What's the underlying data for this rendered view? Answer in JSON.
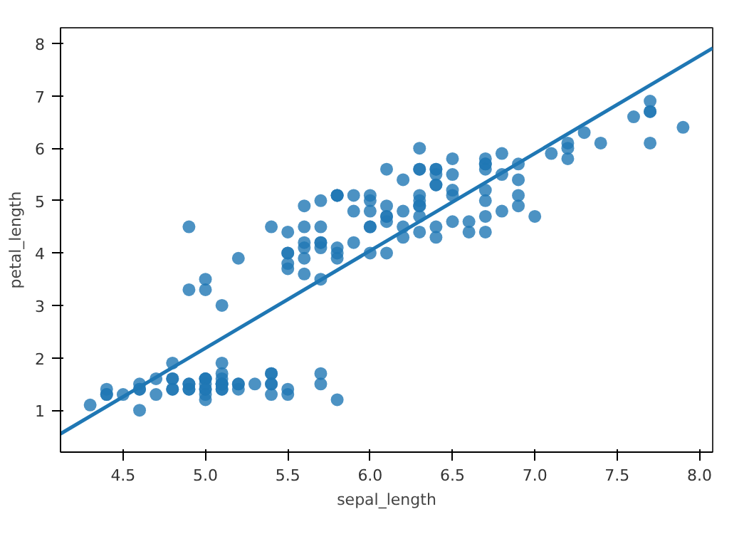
{
  "chart_data": {
    "type": "scatter",
    "xlabel": "sepal_length",
    "ylabel": "petal_length",
    "xlim": [
      4.12,
      8.08
    ],
    "ylim": [
      0.2,
      8.3
    ],
    "xticks": [
      {
        "value": 4.5,
        "label": "4.5"
      },
      {
        "value": 5.0,
        "label": "5.0"
      },
      {
        "value": 5.5,
        "label": "5.5"
      },
      {
        "value": 6.0,
        "label": "6.0"
      },
      {
        "value": 6.5,
        "label": "6.5"
      },
      {
        "value": 7.0,
        "label": "7.0"
      },
      {
        "value": 7.5,
        "label": "7.5"
      },
      {
        "value": 8.0,
        "label": "8.0"
      }
    ],
    "yticks": [
      1,
      2,
      3,
      4,
      5,
      6,
      7,
      8
    ],
    "grid": false,
    "marker": "circle",
    "series": [
      {
        "color": "#1f77b4",
        "x": [
          5.1,
          4.9,
          4.7,
          4.6,
          5.0,
          5.4,
          4.6,
          5.0,
          4.4,
          4.9,
          5.4,
          4.8,
          4.8,
          4.3,
          5.8,
          5.7,
          5.4,
          5.1,
          5.7,
          5.1,
          5.4,
          5.1,
          4.6,
          5.1,
          4.8,
          5.0,
          5.0,
          5.2,
          5.2,
          4.7,
          4.8,
          5.4,
          5.2,
          5.5,
          4.9,
          5.0,
          5.5,
          4.9,
          4.4,
          5.1,
          5.0,
          4.5,
          4.4,
          5.0,
          5.1,
          4.8,
          5.1,
          4.6,
          5.3,
          5.0,
          7.0,
          6.4,
          6.9,
          5.5,
          6.5,
          5.7,
          6.3,
          4.9,
          6.6,
          5.2,
          5.0,
          5.9,
          6.0,
          6.1,
          5.6,
          6.7,
          5.6,
          5.8,
          6.2,
          5.6,
          5.9,
          6.1,
          6.3,
          6.1,
          6.4,
          6.6,
          6.8,
          6.7,
          6.0,
          5.7,
          5.5,
          5.5,
          5.8,
          6.0,
          5.4,
          6.0,
          6.7,
          6.3,
          5.6,
          5.5,
          5.5,
          6.1,
          5.8,
          5.0,
          5.6,
          5.7,
          5.7,
          6.2,
          5.1,
          5.7,
          6.3,
          5.8,
          7.1,
          6.3,
          6.5,
          7.6,
          4.9,
          7.3,
          6.7,
          7.2,
          6.5,
          6.4,
          6.8,
          5.7,
          5.8,
          6.4,
          6.5,
          7.7,
          7.7,
          6.0,
          6.9,
          5.6,
          7.7,
          6.3,
          6.7,
          7.2,
          6.2,
          6.1,
          6.4,
          7.2,
          7.4,
          7.9,
          6.4,
          6.3,
          6.1,
          7.7,
          6.3,
          6.4,
          6.0,
          6.9,
          6.7,
          6.9,
          5.8,
          6.8,
          6.7,
          6.7,
          6.3,
          6.5,
          6.2,
          5.9
        ],
        "values": [
          1.4,
          1.4,
          1.3,
          1.5,
          1.4,
          1.7,
          1.4,
          1.5,
          1.4,
          1.5,
          1.5,
          1.6,
          1.4,
          1.1,
          1.2,
          1.5,
          1.3,
          1.4,
          1.7,
          1.5,
          1.7,
          1.5,
          1.0,
          1.7,
          1.9,
          1.6,
          1.6,
          1.5,
          1.4,
          1.6,
          1.6,
          1.5,
          1.5,
          1.4,
          1.5,
          1.2,
          1.3,
          1.4,
          1.3,
          1.5,
          1.3,
          1.3,
          1.3,
          1.6,
          1.9,
          1.4,
          1.6,
          1.4,
          1.5,
          1.4,
          4.7,
          4.5,
          4.9,
          4.0,
          4.6,
          4.5,
          4.7,
          3.3,
          4.6,
          3.9,
          3.5,
          4.2,
          4.0,
          4.7,
          3.6,
          4.4,
          4.5,
          4.1,
          4.5,
          3.9,
          4.8,
          4.0,
          4.9,
          4.7,
          4.3,
          4.4,
          4.8,
          5.0,
          4.5,
          3.5,
          3.8,
          3.7,
          3.9,
          5.1,
          4.5,
          4.5,
          4.7,
          4.4,
          4.1,
          4.0,
          4.4,
          4.6,
          4.0,
          3.3,
          4.2,
          4.2,
          4.2,
          4.3,
          3.0,
          4.1,
          6.0,
          5.1,
          5.9,
          5.6,
          5.8,
          6.6,
          4.5,
          6.3,
          5.8,
          6.1,
          5.1,
          5.3,
          5.5,
          5.0,
          5.1,
          5.3,
          5.5,
          6.7,
          6.9,
          5.0,
          5.7,
          4.9,
          6.7,
          4.9,
          5.7,
          6.0,
          4.8,
          4.9,
          5.6,
          5.8,
          6.1,
          6.4,
          5.6,
          5.1,
          5.6,
          6.1,
          5.6,
          5.5,
          4.8,
          5.4,
          5.6,
          5.1,
          5.1,
          5.9,
          5.7,
          5.2,
          5.0,
          5.2,
          5.4,
          5.1
        ]
      },
      {
        "type": "line",
        "color": "#1f77b4",
        "marker": "none",
        "line_style": "solid",
        "x": [
          4.12,
          8.08
        ],
        "values": [
          0.55,
          7.91
        ]
      }
    ]
  }
}
